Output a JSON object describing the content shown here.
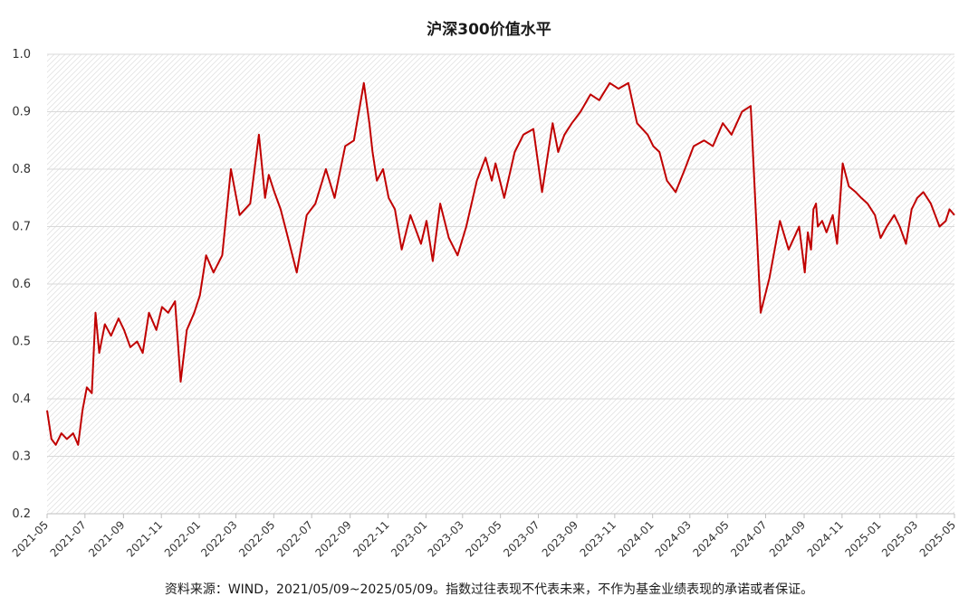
{
  "chart_data": {
    "type": "line",
    "title": "沪深300价值水平",
    "xlabel": "",
    "ylabel": "",
    "ylim": [
      0.2,
      1.0
    ],
    "yticks": [
      "0.2",
      "0.3",
      "0.4",
      "0.5",
      "0.6",
      "0.7",
      "0.8",
      "0.9",
      "1.0"
    ],
    "xlim": [
      "2021-05-09",
      "2025-05-09"
    ],
    "xticks": [
      "2021-05",
      "2021-07",
      "2021-09",
      "2021-11",
      "2022-01",
      "2022-03",
      "2022-05",
      "2022-07",
      "2022-09",
      "2022-11",
      "2023-01",
      "2023-03",
      "2023-05",
      "2023-07",
      "2023-09",
      "2023-11",
      "2024-01",
      "2024-03",
      "2024-05",
      "2024-07",
      "2024-09",
      "2024-11",
      "2025-01",
      "2025-03",
      "2025-05"
    ],
    "grid": true,
    "legend": "none",
    "series": [
      {
        "color": "#c00000",
        "x": [
          "2021-05-09",
          "2021-05-16",
          "2021-05-23",
          "2021-06-01",
          "2021-06-10",
          "2021-06-20",
          "2021-06-28",
          "2021-07-05",
          "2021-07-12",
          "2021-07-20",
          "2021-07-26",
          "2021-08-01",
          "2021-08-10",
          "2021-08-20",
          "2021-09-01",
          "2021-09-10",
          "2021-09-20",
          "2021-10-01",
          "2021-10-10",
          "2021-10-20",
          "2021-11-01",
          "2021-11-10",
          "2021-11-20",
          "2021-12-01",
          "2021-12-10",
          "2021-12-20",
          "2022-01-01",
          "2022-01-10",
          "2022-01-20",
          "2022-02-01",
          "2022-02-15",
          "2022-03-01",
          "2022-03-15",
          "2022-04-01",
          "2022-04-15",
          "2022-04-25",
          "2022-05-01",
          "2022-05-10",
          "2022-05-20",
          "2022-06-01",
          "2022-06-15",
          "2022-07-01",
          "2022-07-15",
          "2022-08-01",
          "2022-08-15",
          "2022-09-01",
          "2022-09-15",
          "2022-10-01",
          "2022-10-10",
          "2022-10-15",
          "2022-10-22",
          "2022-11-01",
          "2022-11-10",
          "2022-11-20",
          "2022-12-01",
          "2022-12-15",
          "2023-01-01",
          "2023-01-10",
          "2023-01-20",
          "2023-02-01",
          "2023-02-15",
          "2023-03-01",
          "2023-03-15",
          "2023-04-01",
          "2023-04-15",
          "2023-04-25",
          "2023-05-01",
          "2023-05-15",
          "2023-06-01",
          "2023-06-15",
          "2023-07-01",
          "2023-07-15",
          "2023-08-01",
          "2023-08-10",
          "2023-08-20",
          "2023-09-01",
          "2023-09-15",
          "2023-10-01",
          "2023-10-15",
          "2023-11-01",
          "2023-11-15",
          "2023-12-01",
          "2023-12-15",
          "2024-01-01",
          "2024-01-10",
          "2024-01-20",
          "2024-02-01",
          "2024-02-15",
          "2024-03-01",
          "2024-03-15",
          "2024-04-01",
          "2024-04-15",
          "2024-05-01",
          "2024-05-15",
          "2024-06-01",
          "2024-06-15",
          "2024-07-01",
          "2024-07-15",
          "2024-08-01",
          "2024-08-15",
          "2024-09-01",
          "2024-09-10",
          "2024-09-15",
          "2024-09-20",
          "2024-09-24",
          "2024-09-28",
          "2024-10-01",
          "2024-10-08",
          "2024-10-15",
          "2024-10-25",
          "2024-11-01",
          "2024-11-10",
          "2024-11-20",
          "2024-12-01",
          "2024-12-10",
          "2024-12-20",
          "2025-01-01",
          "2025-01-10",
          "2025-01-20",
          "2025-02-01",
          "2025-02-10",
          "2025-02-20",
          "2025-03-01",
          "2025-03-10",
          "2025-03-20",
          "2025-04-01",
          "2025-04-08",
          "2025-04-15",
          "2025-04-25",
          "2025-05-01",
          "2025-05-09"
        ],
        "values": [
          0.38,
          0.33,
          0.32,
          0.34,
          0.33,
          0.34,
          0.32,
          0.38,
          0.42,
          0.41,
          0.55,
          0.48,
          0.53,
          0.51,
          0.54,
          0.52,
          0.49,
          0.5,
          0.48,
          0.55,
          0.52,
          0.56,
          0.55,
          0.57,
          0.43,
          0.52,
          0.55,
          0.58,
          0.65,
          0.62,
          0.65,
          0.8,
          0.72,
          0.74,
          0.86,
          0.75,
          0.79,
          0.76,
          0.73,
          0.68,
          0.62,
          0.72,
          0.74,
          0.8,
          0.75,
          0.84,
          0.85,
          0.95,
          0.88,
          0.83,
          0.78,
          0.8,
          0.75,
          0.73,
          0.66,
          0.72,
          0.67,
          0.71,
          0.64,
          0.74,
          0.68,
          0.65,
          0.7,
          0.78,
          0.82,
          0.78,
          0.81,
          0.75,
          0.83,
          0.86,
          0.87,
          0.76,
          0.88,
          0.83,
          0.86,
          0.88,
          0.9,
          0.93,
          0.92,
          0.95,
          0.94,
          0.95,
          0.88,
          0.86,
          0.84,
          0.83,
          0.78,
          0.76,
          0.8,
          0.84,
          0.85,
          0.84,
          0.88,
          0.86,
          0.9,
          0.91,
          0.55,
          0.61,
          0.71,
          0.66,
          0.7,
          0.62,
          0.69,
          0.66,
          0.73,
          0.74,
          0.7,
          0.71,
          0.69,
          0.72,
          0.67,
          0.81,
          0.77,
          0.76,
          0.75,
          0.74,
          0.72,
          0.68,
          0.7,
          0.72,
          0.7,
          0.67,
          0.73,
          0.75,
          0.76,
          0.74,
          0.72,
          0.7,
          0.71,
          0.73,
          0.72
        ]
      }
    ]
  },
  "footer": {
    "source": "资料来源：WIND，2021/05/09~2025/05/09。指数过往表现不代表未来，不作为基金业绩表现的承诺或者保证。"
  }
}
